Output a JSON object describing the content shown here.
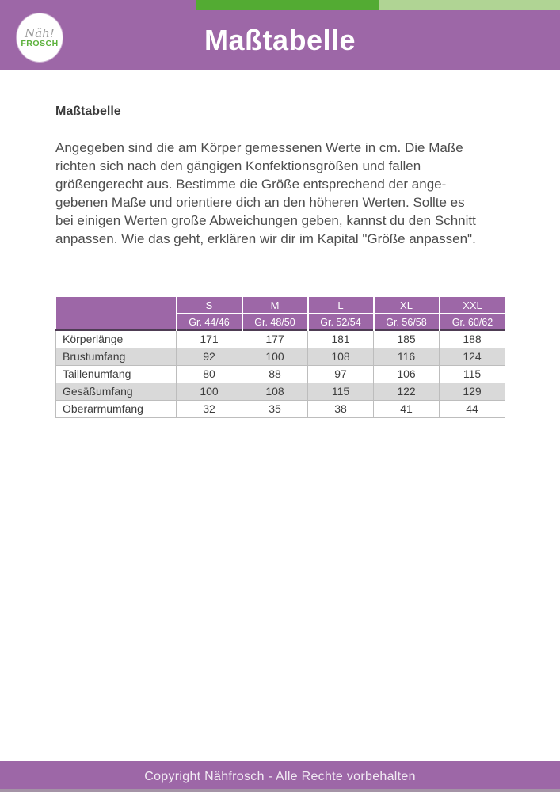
{
  "colors": {
    "purple": "#9d67a7",
    "green_dark": "#53ab33",
    "green_light": "#b0d494",
    "stripe_gray": "#d9d9d9",
    "logo_green": "#5cb13c"
  },
  "logo": {
    "script": "Näh!",
    "name": "FROSCH"
  },
  "header": {
    "title": "Maßtabelle"
  },
  "content": {
    "heading": "Maßtabelle",
    "paragraph_lines": [
      "Angegeben sind die am Körper gemessenen Werte in cm. Die Maße",
      "richten sich nach den gängigen Konfektionsgrößen und fallen",
      "größengerecht aus. Bestimme die Größe entsprechend der ange-",
      "gebenen Maße und orientiere dich an den höheren Werten. Sollte es",
      "bei einigen Werten große Abweichungen geben, kannst du den Schnitt",
      "anpassen. Wie das geht, erklären wir dir im Kapital \"Größe anpassen\"."
    ]
  },
  "table": {
    "sizes": [
      "S",
      "M",
      "L",
      "XL",
      "XXL"
    ],
    "size_labels": [
      "Gr. 44/46",
      "Gr. 48/50",
      "Gr. 52/54",
      "Gr. 56/58",
      "Gr. 60/62"
    ],
    "rows": [
      {
        "label": "Körperlänge",
        "values": [
          171,
          177,
          181,
          185,
          188
        ]
      },
      {
        "label": "Brustumfang",
        "values": [
          92,
          100,
          108,
          116,
          124
        ]
      },
      {
        "label": "Taillenumfang",
        "values": [
          80,
          88,
          97,
          106,
          115
        ]
      },
      {
        "label": "Gesäßumfang",
        "values": [
          100,
          108,
          115,
          122,
          129
        ]
      },
      {
        "label": "Oberarmumfang",
        "values": [
          32,
          35,
          38,
          41,
          44
        ]
      }
    ]
  },
  "footer": {
    "text": "Copyright Nähfrosch - Alle Rechte vorbehalten"
  }
}
